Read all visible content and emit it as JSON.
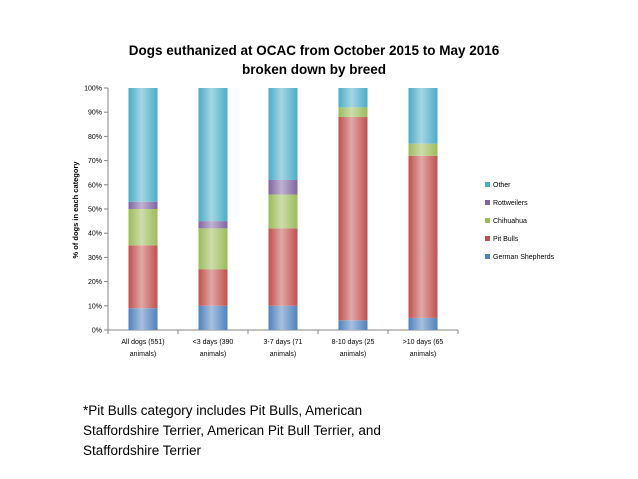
{
  "chart_data": {
    "type": "bar",
    "stacked": true,
    "percent": true,
    "title": [
      "Dogs euthanized at OCAC from October 2015 to May 2016",
      "broken down by breed"
    ],
    "ylabel": "% of dogs in each category",
    "xlabel": "",
    "ylim": [
      0,
      100
    ],
    "yticks": [
      "0%",
      "10%",
      "20%",
      "30%",
      "40%",
      "50%",
      "60%",
      "70%",
      "80%",
      "90%",
      "100%"
    ],
    "grid": false,
    "legend_position": "right",
    "categories": [
      [
        "All dogs (551)",
        "animals)"
      ],
      [
        "<3 days (390",
        "animals)"
      ],
      [
        "3-7 days (71",
        "animals)"
      ],
      [
        "8-10 days (25",
        "animals)"
      ],
      [
        ">10 days (65",
        "animals)"
      ]
    ],
    "series": [
      {
        "name": "German Shepherds",
        "color": "#4f81bd",
        "values": [
          9,
          10,
          10,
          4,
          5
        ]
      },
      {
        "name": "Pit Bulls",
        "color": "#c0504d",
        "values": [
          26,
          15,
          32,
          84,
          67
        ]
      },
      {
        "name": "Chihuahua",
        "color": "#9bbb59",
        "values": [
          15,
          17,
          14,
          4,
          5
        ]
      },
      {
        "name": "Rottweilers",
        "color": "#8064a2",
        "values": [
          3,
          3,
          6,
          0,
          0
        ]
      },
      {
        "name": "Other",
        "color": "#4bacc6",
        "values": [
          47,
          55,
          38,
          8,
          23
        ]
      }
    ]
  },
  "footnote": {
    "line1": "*Pit Bulls category includes Pit Bulls, American",
    "line2": "Staffordshire Terrier, American Pit Bull Terrier, and",
    "line3": "Staffordshire Terrier"
  }
}
